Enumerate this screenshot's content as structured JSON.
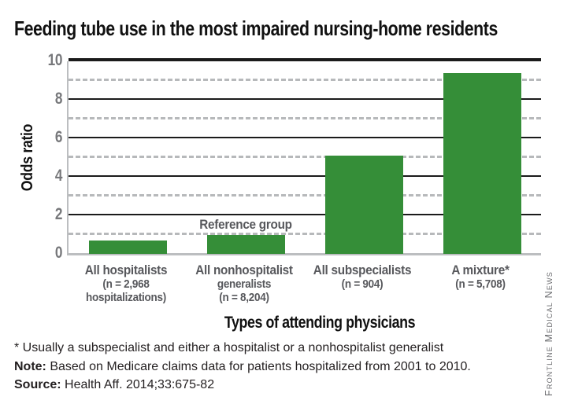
{
  "title": "Feeding tube use in the most impaired nursing-home residents",
  "credit": "Frontline Medical News",
  "chart_data": {
    "type": "bar",
    "title": "Feeding tube use in the most impaired nursing-home residents",
    "xlabel": "Types of attending physicians",
    "ylabel": "Odds ratio",
    "ylim": [
      0,
      10
    ],
    "yticks": [
      0,
      2,
      4,
      6,
      8,
      10
    ],
    "grid": "solid black lines at even values, dashed gray lines at odd values",
    "legend": "none",
    "bar_color": "#358e38",
    "categories": [
      "All hospitalists (n = 2,968 hospitalizations)",
      "All nonhospitalist generalists (n = 8,204)",
      "All subspecialists (n = 904)",
      "A mixture* (n = 5,708)"
    ],
    "category_lines": [
      [
        "All hospitalists",
        "(n = 2,968",
        "hospitalizations)"
      ],
      [
        "All nonhospitalist",
        "generalists",
        "(n = 8,204)"
      ],
      [
        "All subspecialists",
        "(n = 904)"
      ],
      [
        "A mixture*",
        "(n = 5,708)"
      ]
    ],
    "values": [
      0.7,
      1.0,
      5.1,
      9.4
    ],
    "annotations": [
      {
        "text": "Reference group",
        "bar_index": 1
      }
    ]
  },
  "footnotes": [
    {
      "bold": "",
      "rest": "* Usually a subspecialist and either a hospitalist or a nonhospitalist generalist"
    },
    {
      "bold": "Note:",
      "rest": " Based on Medicare claims data for patients hospitalized from 2001 to 2010."
    },
    {
      "bold": "Source:",
      "rest": " Health Aff. 2014;33:675-82"
    }
  ]
}
